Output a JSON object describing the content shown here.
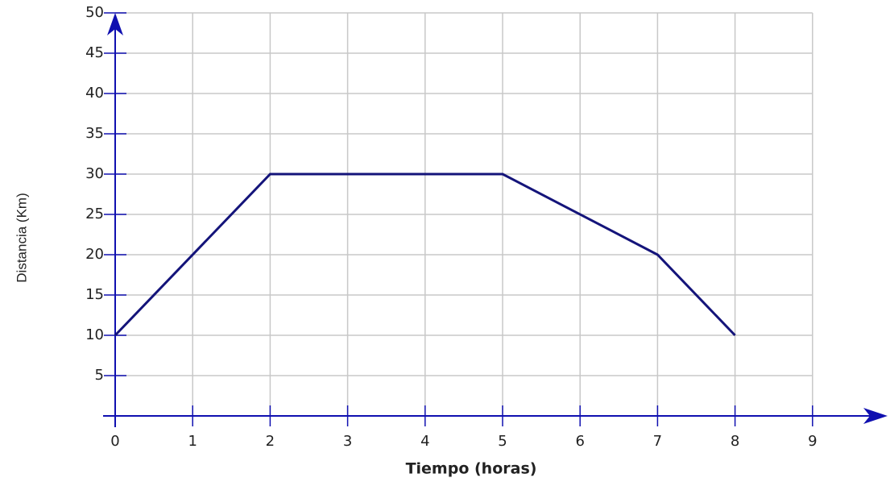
{
  "chart_data": {
    "type": "line",
    "x_label": "Tiempo (horas)",
    "y_label": "Distancia (Km)",
    "x": [
      0,
      2,
      5,
      7,
      8
    ],
    "values": [
      10,
      30,
      30,
      20,
      10
    ],
    "color": "#14147a",
    "xlim": [
      0,
      10
    ],
    "ylim": [
      0,
      50
    ],
    "xticks": [
      0,
      1,
      2,
      3,
      4,
      5,
      6,
      7,
      8,
      9
    ],
    "yticks": [
      5,
      10,
      15,
      20,
      25,
      30,
      35,
      40,
      45,
      50
    ],
    "grid": true
  }
}
